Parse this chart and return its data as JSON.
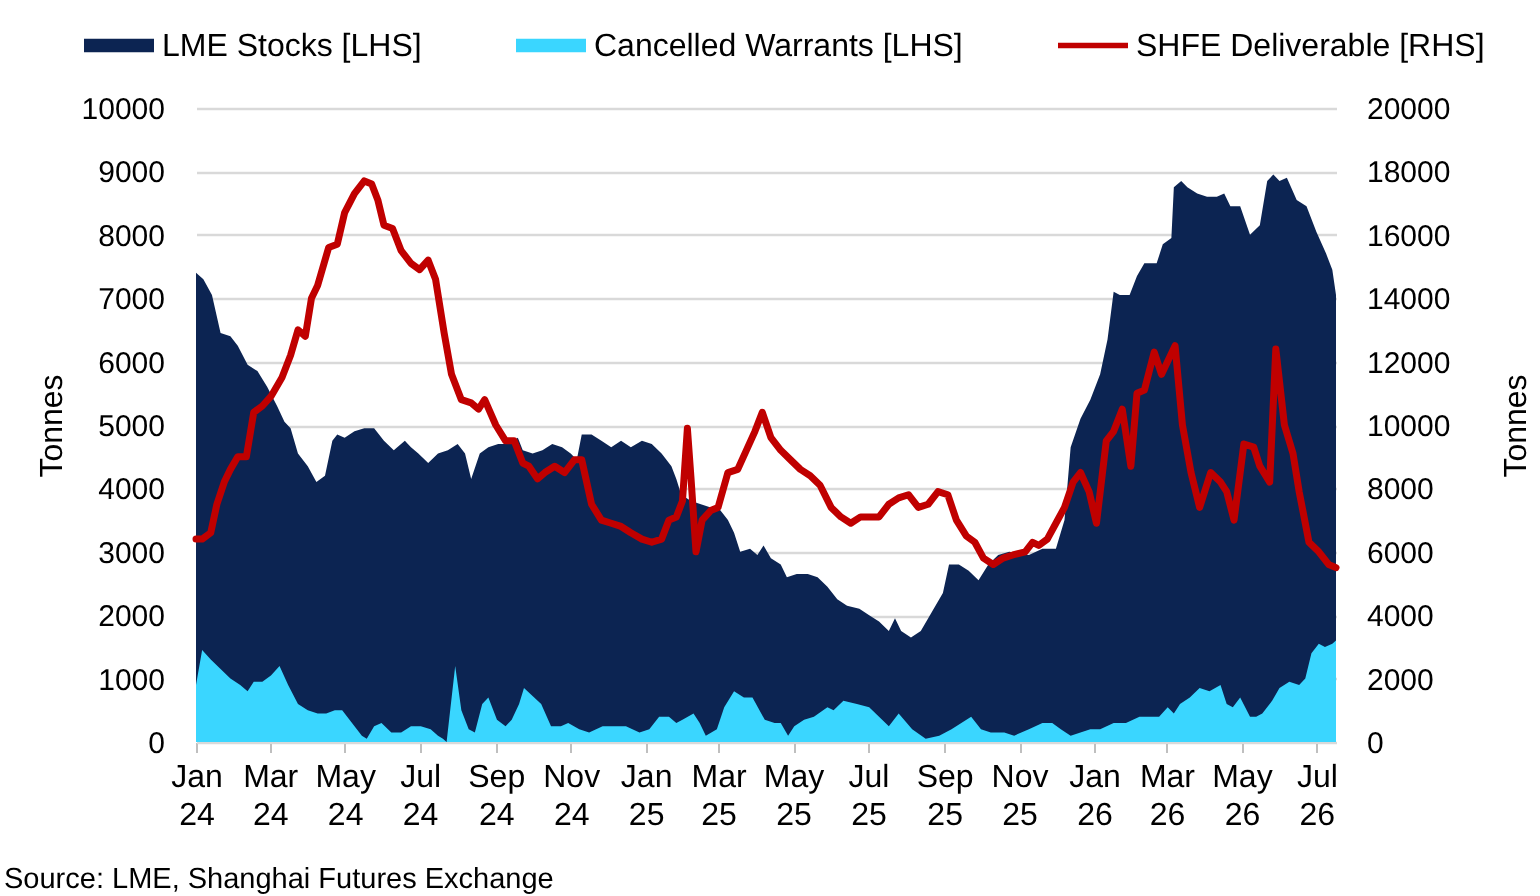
{
  "chart_data": {
    "type": "area",
    "legend": "top",
    "grid": "y",
    "ylabel": "Tonnes",
    "y2label": "Tonnes",
    "xlim": [
      "2024-01-01",
      "2026-07-17"
    ],
    "xticks": [
      {
        "value": "2024-01-01",
        "label": "Jan 24"
      },
      {
        "value": "2024-03-01",
        "label": "Mar 24"
      },
      {
        "value": "2024-05-01",
        "label": "May 24"
      },
      {
        "value": "2024-07-01",
        "label": "Jul 24"
      },
      {
        "value": "2024-09-01",
        "label": "Sep 24"
      },
      {
        "value": "2024-11-01",
        "label": "Nov 24"
      },
      {
        "value": "2025-01-01",
        "label": "Jan 25"
      },
      {
        "value": "2025-03-01",
        "label": "Mar 25"
      },
      {
        "value": "2025-05-01",
        "label": "May 25"
      },
      {
        "value": "2025-07-01",
        "label": "Jul 25"
      },
      {
        "value": "2025-09-01",
        "label": "Sep 25"
      },
      {
        "value": "2025-11-01",
        "label": "Nov 25"
      },
      {
        "value": "2026-01-01",
        "label": "Jan 26"
      },
      {
        "value": "2026-03-01",
        "label": "Mar 26"
      },
      {
        "value": "2026-05-01",
        "label": "May 26"
      },
      {
        "value": "2026-07-01",
        "label": "Jul 26"
      }
    ],
    "ylim": [
      0,
      10000
    ],
    "yticks": [
      0,
      1000,
      2000,
      3000,
      4000,
      5000,
      6000,
      7000,
      8000,
      9000,
      10000
    ],
    "y2lim": [
      0,
      20000
    ],
    "y2ticks": [
      0,
      2000,
      4000,
      6000,
      8000,
      10000,
      12000,
      14000,
      16000,
      18000,
      20000
    ],
    "annotations": [
      "Source: LME, Shanghai Futures Exchange"
    ],
    "series": [
      {
        "name": "LME Stocks [LHS]",
        "color": "#0c2452",
        "x": [
          "2024-01-01",
          "2024-01-07",
          "2024-01-14",
          "2024-01-21",
          "2024-01-29",
          "2024-02-04",
          "2024-02-12",
          "2024-02-20",
          "2024-02-28",
          "2024-03-07",
          "2024-03-13",
          "2024-03-18",
          "2024-03-24",
          "2024-04-01",
          "2024-04-08",
          "2024-04-15",
          "2024-04-21",
          "2024-04-25",
          "2024-05-01",
          "2024-05-09",
          "2024-05-17",
          "2024-05-25",
          "2024-06-02",
          "2024-06-10",
          "2024-06-19",
          "2024-06-24",
          "2024-06-30",
          "2024-07-08",
          "2024-07-16",
          "2024-07-24",
          "2024-08-01",
          "2024-08-07",
          "2024-08-12",
          "2024-08-19",
          "2024-08-26",
          "2024-09-03",
          "2024-09-11",
          "2024-09-19",
          "2024-09-23",
          "2024-10-01",
          "2024-10-09",
          "2024-10-17",
          "2024-10-25",
          "2024-11-01",
          "2024-11-06",
          "2024-11-10",
          "2024-11-18",
          "2024-11-26",
          "2024-12-04",
          "2024-12-12",
          "2024-12-20",
          "2024-12-29",
          "2025-01-06",
          "2025-01-14",
          "2025-01-22",
          "2025-01-26",
          "2025-01-30",
          "2025-02-07",
          "2025-02-15",
          "2025-02-23",
          "2025-03-01",
          "2025-03-09",
          "2025-03-14",
          "2025-03-19",
          "2025-03-27",
          "2025-04-02",
          "2025-04-07",
          "2025-04-13",
          "2025-04-21",
          "2025-04-26",
          "2025-05-04",
          "2025-05-13",
          "2025-05-21",
          "2025-05-29",
          "2025-06-06",
          "2025-06-14",
          "2025-06-24",
          "2025-07-02",
          "2025-07-10",
          "2025-07-18",
          "2025-07-23",
          "2025-07-28",
          "2025-08-05",
          "2025-08-13",
          "2025-08-22",
          "2025-08-31",
          "2025-09-05",
          "2025-09-13",
          "2025-09-21",
          "2025-09-29",
          "2025-10-07",
          "2025-10-15",
          "2025-10-24",
          "2025-11-09",
          "2025-11-20",
          "2025-12-01",
          "2025-12-08",
          "2025-12-13",
          "2025-12-21",
          "2025-12-29",
          "2026-01-06",
          "2026-01-12",
          "2026-01-17",
          "2026-01-22",
          "2026-01-30",
          "2026-02-05",
          "2026-02-11",
          "2026-02-16",
          "2026-02-21",
          "2026-02-26",
          "2026-03-05",
          "2026-03-07",
          "2026-03-13",
          "2026-03-18",
          "2026-03-26",
          "2026-04-03",
          "2026-04-11",
          "2026-04-17",
          "2026-04-22",
          "2026-04-30",
          "2026-05-08",
          "2026-05-16",
          "2026-05-22",
          "2026-05-27",
          "2026-06-01",
          "2026-06-07",
          "2026-06-15",
          "2026-06-23",
          "2026-07-01",
          "2026-07-09",
          "2026-07-14",
          "2026-07-17"
        ],
        "values": [
          7400,
          7300,
          7050,
          6450,
          6400,
          6250,
          5950,
          5850,
          5600,
          5300,
          5050,
          4950,
          4550,
          4350,
          4100,
          4200,
          4750,
          4850,
          4800,
          4900,
          4950,
          4950,
          4750,
          4600,
          4750,
          4650,
          4550,
          4400,
          4550,
          4600,
          4700,
          4550,
          4150,
          4550,
          4650,
          4700,
          4700,
          4800,
          4600,
          4550,
          4600,
          4700,
          4650,
          4550,
          4450,
          4850,
          4850,
          4750,
          4650,
          4750,
          4650,
          4750,
          4700,
          4550,
          4350,
          4150,
          3900,
          3800,
          3750,
          3700,
          3700,
          3500,
          3300,
          3000,
          3050,
          2950,
          3100,
          2900,
          2800,
          2600,
          2650,
          2650,
          2600,
          2450,
          2250,
          2150,
          2100,
          2000,
          1900,
          1750,
          1950,
          1750,
          1650,
          1750,
          2050,
          2350,
          2800,
          2800,
          2700,
          2550,
          2800,
          2950,
          3000,
          2950,
          3050,
          3050,
          3500,
          4650,
          5100,
          5400,
          5800,
          6350,
          7100,
          7050,
          7050,
          7350,
          7550,
          7550,
          7550,
          7850,
          7950,
          8750,
          8850,
          8750,
          8650,
          8600,
          8600,
          8650,
          8450,
          8450,
          8000,
          8150,
          8850,
          8950,
          8850,
          8900,
          8550,
          8450,
          8050,
          7700,
          7450,
          7050
        ]
      },
      {
        "name": "Cancelled Warrants [LHS]",
        "color": "#3ad6ff",
        "x": [
          "2024-01-01",
          "2024-01-06",
          "2024-01-13",
          "2024-01-21",
          "2024-01-29",
          "2024-02-06",
          "2024-02-12",
          "2024-02-17",
          "2024-02-24",
          "2024-03-02",
          "2024-03-09",
          "2024-03-16",
          "2024-03-24",
          "2024-04-01",
          "2024-04-09",
          "2024-04-16",
          "2024-04-23",
          "2024-04-29",
          "2024-05-07",
          "2024-05-15",
          "2024-05-19",
          "2024-05-25",
          "2024-05-31",
          "2024-06-08",
          "2024-06-16",
          "2024-06-24",
          "2024-07-02",
          "2024-07-10",
          "2024-07-16",
          "2024-07-20",
          "2024-07-23",
          "2024-07-30",
          "2024-08-04",
          "2024-08-10",
          "2024-08-15",
          "2024-08-21",
          "2024-08-26",
          "2024-09-02",
          "2024-09-09",
          "2024-09-14",
          "2024-09-20",
          "2024-09-24",
          "2024-10-08",
          "2024-10-16",
          "2024-10-24",
          "2024-10-30",
          "2024-11-08",
          "2024-11-16",
          "2024-11-27",
          "2024-12-08",
          "2024-12-16",
          "2024-12-27",
          "2025-01-04",
          "2025-01-12",
          "2025-01-20",
          "2025-01-26",
          "2025-01-31",
          "2025-02-09",
          "2025-02-14",
          "2025-02-19",
          "2025-02-28",
          "2025-03-06",
          "2025-03-14",
          "2025-03-22",
          "2025-03-29",
          "2025-04-08",
          "2025-04-16",
          "2025-04-21",
          "2025-04-27",
          "2025-05-02",
          "2025-05-10",
          "2025-05-18",
          "2025-05-29",
          "2025-06-03",
          "2025-06-11",
          "2025-06-22",
          "2025-07-02",
          "2025-07-10",
          "2025-07-18",
          "2025-07-26",
          "2025-08-06",
          "2025-08-17",
          "2025-08-28",
          "2025-09-07",
          "2025-09-23",
          "2025-10-01",
          "2025-10-09",
          "2025-10-20",
          "2025-10-28",
          "2025-11-09",
          "2025-11-20",
          "2025-11-28",
          "2025-12-05",
          "2025-12-13",
          "2025-12-21",
          "2025-12-29",
          "2026-01-06",
          "2026-01-17",
          "2026-01-27",
          "2026-02-07",
          "2026-02-15",
          "2026-02-23",
          "2026-03-02",
          "2026-03-07",
          "2026-03-12",
          "2026-03-20",
          "2026-03-28",
          "2026-04-05",
          "2026-04-14",
          "2026-04-19",
          "2026-04-24",
          "2026-04-30",
          "2026-05-08",
          "2026-05-13",
          "2026-05-18",
          "2026-05-26",
          "2026-06-01",
          "2026-06-09",
          "2026-06-17",
          "2026-06-22",
          "2026-06-27",
          "2026-07-03",
          "2026-07-08",
          "2026-07-14",
          "2026-07-17"
        ],
        "values": [
          900,
          1450,
          1300,
          1150,
          1000,
          900,
          800,
          950,
          950,
          1050,
          1200,
          900,
          600,
          500,
          450,
          450,
          500,
          500,
          300,
          100,
          50,
          250,
          300,
          150,
          150,
          250,
          250,
          200,
          100,
          50,
          0,
          1200,
          500,
          200,
          150,
          600,
          700,
          350,
          250,
          350,
          600,
          850,
          600,
          250,
          250,
          300,
          200,
          150,
          250,
          250,
          250,
          150,
          200,
          400,
          400,
          300,
          350,
          450,
          300,
          100,
          200,
          550,
          800,
          700,
          700,
          350,
          300,
          300,
          100,
          250,
          350,
          400,
          550,
          500,
          650,
          600,
          550,
          400,
          250,
          450,
          200,
          50,
          100,
          200,
          400,
          200,
          150,
          150,
          100,
          200,
          300,
          300,
          200,
          100,
          150,
          200,
          200,
          300,
          300,
          400,
          400,
          400,
          550,
          450,
          600,
          700,
          850,
          800,
          900,
          600,
          550,
          700,
          400,
          400,
          450,
          650,
          850,
          950,
          900,
          1000,
          1400,
          1550,
          1500,
          1550,
          1600
        ]
      },
      {
        "name": "SHFE Deliverable [RHS]",
        "type": "line",
        "axis": "y2",
        "color": "#c00000",
        "x": [
          "2024-01-01",
          "2024-01-06",
          "2024-01-13",
          "2024-01-18",
          "2024-01-24",
          "2024-01-29",
          "2024-02-04",
          "2024-02-11",
          "2024-02-17",
          "2024-02-24",
          "2024-03-02",
          "2024-03-11",
          "2024-03-18",
          "2024-03-24",
          "2024-03-30",
          "2024-04-04",
          "2024-04-09",
          "2024-04-18",
          "2024-04-25",
          "2024-05-01",
          "2024-05-09",
          "2024-05-17",
          "2024-05-23",
          "2024-05-28",
          "2024-06-02",
          "2024-06-09",
          "2024-06-16",
          "2024-06-24",
          "2024-07-01",
          "2024-07-08",
          "2024-07-14",
          "2024-07-21",
          "2024-07-27",
          "2024-08-04",
          "2024-08-12",
          "2024-08-18",
          "2024-08-23",
          "2024-09-01",
          "2024-09-09",
          "2024-09-16",
          "2024-09-23",
          "2024-09-28",
          "2024-10-05",
          "2024-10-11",
          "2024-10-19",
          "2024-10-27",
          "2024-11-04",
          "2024-11-10",
          "2024-11-18",
          "2024-11-26",
          "2024-12-04",
          "2024-12-12",
          "2024-12-20",
          "2024-12-29",
          "2025-01-06",
          "2025-01-14",
          "2025-01-20",
          "2025-01-26",
          "2025-01-31",
          "2025-02-04",
          "2025-02-07",
          "2025-02-11",
          "2025-02-16",
          "2025-02-23",
          "2025-03-01",
          "2025-03-09",
          "2025-03-17",
          "2025-03-24",
          "2025-03-31",
          "2025-04-06",
          "2025-04-13",
          "2025-04-21",
          "2025-04-29",
          "2025-05-07",
          "2025-05-15",
          "2025-05-23",
          "2025-06-01",
          "2025-06-09",
          "2025-06-17",
          "2025-06-25",
          "2025-07-02",
          "2025-07-10",
          "2025-07-18",
          "2025-07-26",
          "2025-08-03",
          "2025-08-11",
          "2025-08-19",
          "2025-08-27",
          "2025-09-04",
          "2025-09-11",
          "2025-09-19",
          "2025-09-26",
          "2025-10-03",
          "2025-10-11",
          "2025-10-19",
          "2025-10-27",
          "2025-11-06",
          "2025-11-12",
          "2025-11-17",
          "2025-11-24",
          "2025-12-01",
          "2025-12-08",
          "2025-12-15",
          "2025-12-21",
          "2025-12-28",
          "2026-01-03",
          "2026-01-11",
          "2026-01-17",
          "2026-01-24",
          "2026-01-31",
          "2026-02-05",
          "2026-02-11",
          "2026-02-19",
          "2026-02-25",
          "2026-03-08",
          "2026-03-14",
          "2026-03-21",
          "2026-03-28",
          "2026-04-06",
          "2026-04-14",
          "2026-04-19",
          "2026-04-25",
          "2026-05-03",
          "2026-05-11",
          "2026-05-16",
          "2026-05-24",
          "2026-05-29",
          "2026-06-05",
          "2026-06-12",
          "2026-06-17",
          "2026-06-25",
          "2026-07-03",
          "2026-07-11",
          "2026-07-17"
        ],
        "values": [
          6400,
          6400,
          6600,
          7500,
          8200,
          8600,
          9000,
          9000,
          10400,
          10600,
          10900,
          11500,
          12200,
          13000,
          12800,
          14000,
          14400,
          15600,
          15700,
          16700,
          17300,
          17700,
          17600,
          17100,
          16300,
          16200,
          15500,
          15100,
          14900,
          15200,
          14600,
          12900,
          11600,
          10800,
          10700,
          10500,
          10800,
          10000,
          9500,
          9500,
          8800,
          8700,
          8300,
          8500,
          8700,
          8500,
          8900,
          8900,
          7500,
          7000,
          6900,
          6800,
          6600,
          6400,
          6300,
          6400,
          7000,
          7100,
          7600,
          9900,
          8300,
          6000,
          7000,
          7300,
          7400,
          8500,
          8600,
          9200,
          9800,
          10400,
          9600,
          9200,
          8900,
          8600,
          8400,
          8100,
          7400,
          7100,
          6900,
          7100,
          7100,
          7100,
          7500,
          7700,
          7800,
          7400,
          7500,
          7900,
          7800,
          7000,
          6500,
          6300,
          5800,
          5600,
          5800,
          5900,
          6000,
          6300,
          6200,
          6400,
          6900,
          7400,
          8200,
          8500,
          7900,
          6900,
          9500,
          9800,
          10500,
          8700,
          11000,
          11100,
          12300,
          11600,
          12500,
          10000,
          8500,
          7400,
          8500,
          8200,
          7900,
          7000,
          9400,
          9300,
          8700,
          8200,
          12400,
          10000,
          9100,
          7900,
          6300,
          6000,
          5600,
          5500
        ]
      }
    ]
  }
}
